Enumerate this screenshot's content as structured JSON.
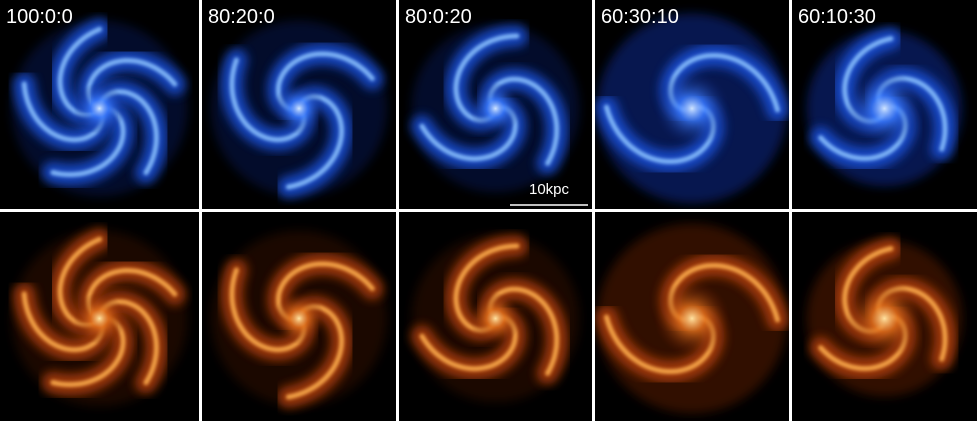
{
  "panels": {
    "labels": [
      "100:0:0",
      "80:20:0",
      "80:0:20",
      "60:30:10",
      "60:10:30"
    ]
  },
  "scale_bar": {
    "label": "10kpc"
  }
}
